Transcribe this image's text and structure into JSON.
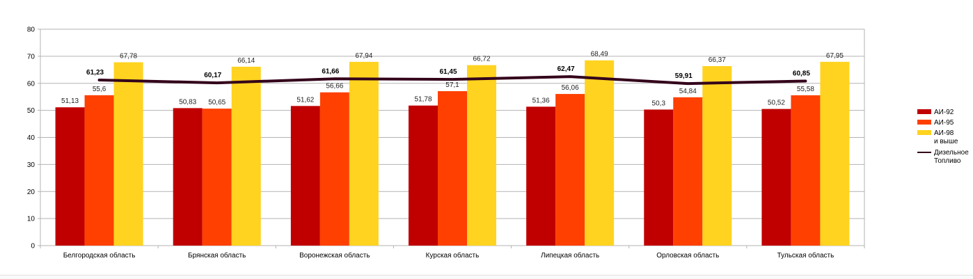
{
  "chart_data": {
    "type": "bar",
    "title": "",
    "xlabel": "",
    "ylabel": "",
    "ylim": [
      0,
      80
    ],
    "yticks": [
      0,
      10,
      20,
      30,
      40,
      50,
      60,
      70,
      80
    ],
    "grid": true,
    "legend_position": "right",
    "categories": [
      "Белгородская область",
      "Брянская область",
      "Воронежская область",
      "Курская область",
      "Липецкая область",
      "Орловская область",
      "Тульская область"
    ],
    "series": [
      {
        "name": "АИ-92",
        "type": "bar",
        "color": "#c00000",
        "values": [
          51.13,
          50.83,
          51.62,
          51.78,
          51.36,
          50.3,
          50.52
        ],
        "labels": [
          "51,13",
          "50,83",
          "51,62",
          "51,78",
          "51,36",
          "50,3",
          "50,52"
        ]
      },
      {
        "name": "АИ-95",
        "type": "bar",
        "color": "#ff4000",
        "values": [
          55.6,
          50.65,
          56.66,
          57.1,
          56.06,
          54.84,
          55.58
        ],
        "labels": [
          "55,6",
          "50,65",
          "56,66",
          "57,1",
          "56,06",
          "54,84",
          "55,58"
        ]
      },
      {
        "name": "АИ-98 и выше",
        "legend_lines": [
          "АИ-98",
          "и выше"
        ],
        "type": "bar",
        "color": "#ffd320",
        "values": [
          67.78,
          66.14,
          67.94,
          66.72,
          68.49,
          66.37,
          67.95
        ],
        "labels": [
          "67,78",
          "66,14",
          "67,94",
          "66,72",
          "68,49",
          "66,37",
          "67,95"
        ]
      },
      {
        "name": "Дизельное Топливо",
        "legend_lines": [
          "Дизельное",
          "Топливо"
        ],
        "type": "line",
        "color": "#33001a",
        "values": [
          61.23,
          60.17,
          61.66,
          61.45,
          62.47,
          59.91,
          60.85
        ],
        "labels": [
          "61,23",
          "60,17",
          "61,66",
          "61,45",
          "62,47",
          "59,91",
          "60,85"
        ]
      }
    ]
  }
}
